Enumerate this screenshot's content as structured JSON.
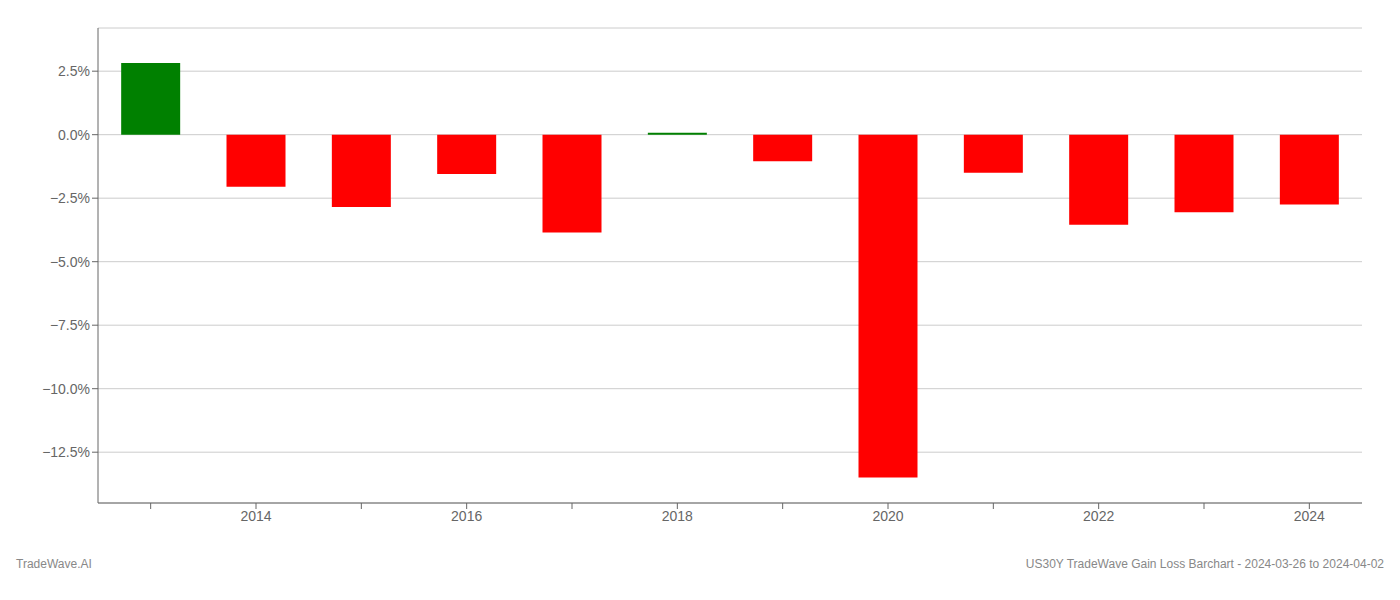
{
  "chart_data": {
    "type": "bar",
    "categories": [
      null,
      "2014",
      null,
      "2016",
      null,
      "2018",
      null,
      "2020",
      null,
      "2022",
      null,
      "2024"
    ],
    "values": [
      2.82,
      -2.05,
      -2.85,
      -1.55,
      -3.85,
      0.08,
      -1.05,
      -13.5,
      -1.5,
      -3.55,
      -3.05,
      -2.75
    ],
    "colors": [
      "#008000",
      "#ff0000",
      "#ff0000",
      "#ff0000",
      "#ff0000",
      "#008000",
      "#ff0000",
      "#ff0000",
      "#ff0000",
      "#ff0000",
      "#ff0000",
      "#ff0000"
    ],
    "ylim": [
      -14.5,
      4.2
    ],
    "yticks": [
      {
        "value": 2.5,
        "label": "2.5%"
      },
      {
        "value": 0.0,
        "label": "0.0%"
      },
      {
        "value": -2.5,
        "label": "−2.5%"
      },
      {
        "value": -5.0,
        "label": "−5.0%"
      },
      {
        "value": -7.5,
        "label": "−7.5%"
      },
      {
        "value": -10.0,
        "label": "−10.0%"
      },
      {
        "value": -12.5,
        "label": "−12.5%"
      }
    ],
    "grid": true,
    "annotations": [
      "TradeWave.AI",
      "US30Y TradeWave Gain Loss Barchart - 2024-03-26 to 2024-04-02"
    ]
  }
}
